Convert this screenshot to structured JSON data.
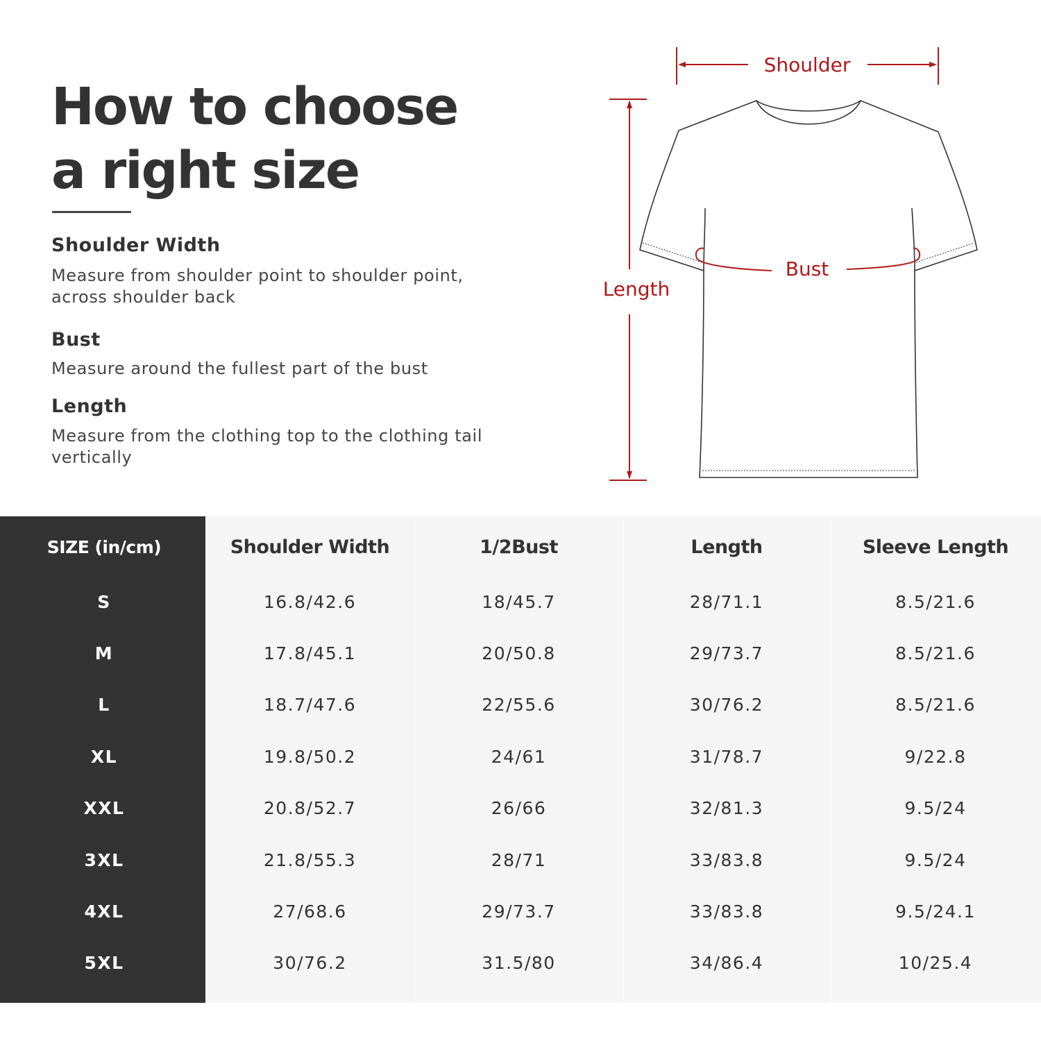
{
  "heading": {
    "line1": "How to choose",
    "line2": "a right size"
  },
  "guide": [
    {
      "title": "Shoulder Width",
      "text": "Measure from shoulder point to shoulder point, across shoulder back"
    },
    {
      "title": "Bust",
      "text": "Measure around the fullest part of the bust"
    },
    {
      "title": "Length",
      "text": "Measure from the clothing top to the clothing tail vertically"
    }
  ],
  "diagram": {
    "shoulder": "Shoulder",
    "bust": "Bust",
    "length": "Length",
    "accent_color": "#b01818"
  },
  "table": {
    "headers": [
      "SIZE  (in/cm)",
      "Shoulder Width",
      "1/2Bust",
      "Length",
      "Sleeve Length"
    ],
    "rows": [
      [
        "S",
        "16.8/42.6",
        "18/45.7",
        "28/71.1",
        "8.5/21.6"
      ],
      [
        "M",
        "17.8/45.1",
        "20/50.8",
        "29/73.7",
        "8.5/21.6"
      ],
      [
        "L",
        "18.7/47.6",
        "22/55.6",
        "30/76.2",
        "8.5/21.6"
      ],
      [
        "XL",
        "19.8/50.2",
        "24/61",
        "31/78.7",
        "9/22.8"
      ],
      [
        "XXL",
        "20.8/52.7",
        "26/66",
        "32/81.3",
        "9.5/24"
      ],
      [
        "3XL",
        "21.8/55.3",
        "28/71",
        "33/83.8",
        "9.5/24"
      ],
      [
        "4XL",
        "27/68.6",
        "29/73.7",
        "33/83.8",
        "9.5/24.1"
      ],
      [
        "5XL",
        "30/76.2",
        "31.5/80",
        "34/86.4",
        "10/25.4"
      ]
    ]
  }
}
